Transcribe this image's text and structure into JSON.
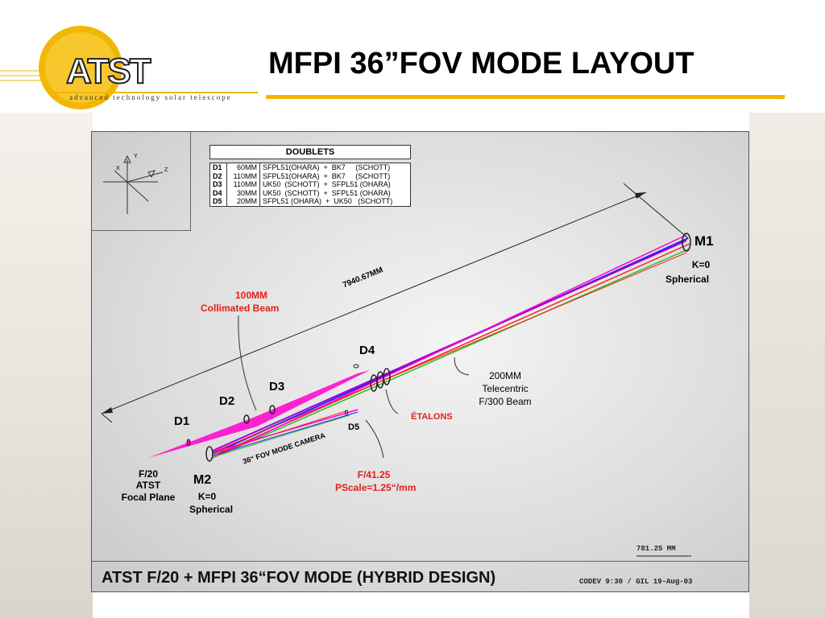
{
  "header": {
    "title": "MFPI 36”FOV MODE LAYOUT",
    "logo_text": "ATST",
    "logo_tagline": "advanced technology solar telescope"
  },
  "axes": {
    "y": "Y",
    "x": "X",
    "z": "Z"
  },
  "doublets": {
    "title": "DOUBLETS",
    "rows": [
      {
        "id": "D1",
        "size": "60MM",
        "glass": "SFPL51(OHARA)  +  BK7     (SCHOTT)"
      },
      {
        "id": "D2",
        "size": "110MM",
        "glass": "SFPL51(OHARA)  +  BK7     (SCHOTT)"
      },
      {
        "id": "D3",
        "size": "110MM",
        "glass": "UK50  (SCHOTT)  +  SFPL51 (OHARA)"
      },
      {
        "id": "D4",
        "size": "30MM",
        "glass": "UK50  (SCHOTT)  +  SFPL51 (OHARA)"
      },
      {
        "id": "D5",
        "size": "20MM",
        "glass": "SFPL51 (OHARA)  +  UK50   (SCHOTT)"
      }
    ]
  },
  "labels": {
    "m1": "M1",
    "m1_k": "K=0",
    "m1_type": "Spherical",
    "dimension": "7940.67MM",
    "beam_size": "100MM",
    "beam_type": "Collimated Beam",
    "d1": "D1",
    "d2": "D2",
    "d3": "D3",
    "d4": "D4",
    "d5": "D5",
    "telecentric_1": "200MM",
    "telecentric_2": "Telecentric",
    "telecentric_3": "F/300 Beam",
    "etalons": "ÉTALONS",
    "camera": "36“ FOV MODE CAMERA",
    "f_number": "F/41.25",
    "pscale": "PScale=1.25“/mm",
    "focal_1": "F/20",
    "focal_2": "ATST",
    "focal_3": "Focal Plane",
    "m2": "M2",
    "m2_k": "K=0",
    "m2_type": "Spherical"
  },
  "scale_bar": "781.25 MM",
  "footer": {
    "title": "ATST F/20 + MFPI 36“FOV MODE (HYBRID DESIGN)",
    "meta": "CODEV 9:30 / GIL    19-Aug-03"
  },
  "colors": {
    "accent": "#f2b705",
    "label_red": "#e0201a",
    "beam_magenta": "#ff00cc",
    "ray_blue": "#2020ff",
    "ray_red": "#ff2020",
    "ray_green": "#20c020",
    "ray_purple": "#a000d0"
  }
}
